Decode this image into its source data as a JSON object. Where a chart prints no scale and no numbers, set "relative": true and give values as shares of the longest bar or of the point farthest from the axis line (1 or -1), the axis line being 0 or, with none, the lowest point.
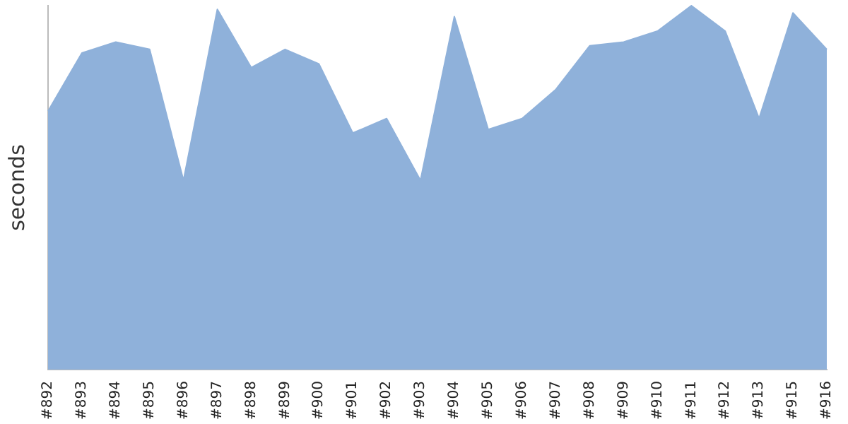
{
  "chart_data": {
    "type": "area",
    "ylabel": "seconds",
    "relative": true,
    "grid": false,
    "legend": false,
    "categories": [
      "#892",
      "#893",
      "#894",
      "#895",
      "#896",
      "#897",
      "#898",
      "#899",
      "#900",
      "#901",
      "#902",
      "#903",
      "#904",
      "#905",
      "#906",
      "#907",
      "#908",
      "#909",
      "#910",
      "#911",
      "#912",
      "#913",
      "#915",
      "#916"
    ],
    "series": [
      {
        "color": "#8fb1da",
        "values": [
          0.71,
          0.87,
          0.9,
          0.88,
          0.52,
          0.99,
          0.83,
          0.88,
          0.84,
          0.65,
          0.69,
          0.52,
          0.97,
          0.66,
          0.69,
          0.77,
          0.89,
          0.9,
          0.93,
          1,
          0.93,
          0.69,
          0.98,
          0.88
        ]
      }
    ]
  }
}
